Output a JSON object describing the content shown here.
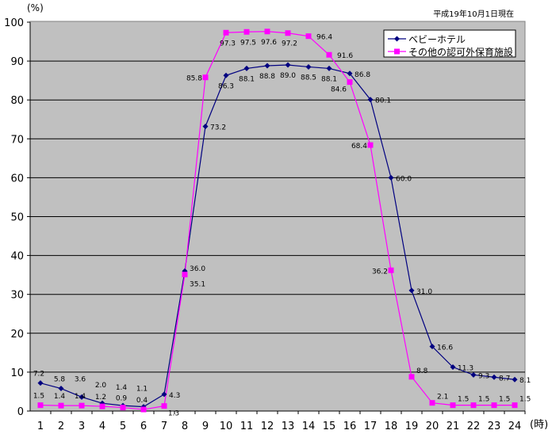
{
  "chart_data": {
    "type": "line",
    "title": "",
    "note": "平成19年10月1日現在",
    "ylabel": "(%)",
    "xlabel": "(時)",
    "ylim": [
      0,
      100
    ],
    "yticks": [
      0,
      10,
      20,
      30,
      40,
      50,
      60,
      70,
      80,
      90,
      100
    ],
    "categories": [
      "1",
      "2",
      "3",
      "4",
      "5",
      "6",
      "7",
      "8",
      "9",
      "10",
      "11",
      "12",
      "13",
      "14",
      "15",
      "16",
      "17",
      "18",
      "19",
      "20",
      "21",
      "22",
      "23",
      "24"
    ],
    "grid": "horizontal",
    "legend_position": "top-right",
    "series": [
      {
        "name": "ベビーホテル",
        "color": "#000080",
        "marker": "diamond",
        "values": [
          7.2,
          5.8,
          3.6,
          2.0,
          1.4,
          1.1,
          4.3,
          36.0,
          73.2,
          86.3,
          88.1,
          88.8,
          89.0,
          88.5,
          88.1,
          86.8,
          80.1,
          60.0,
          31.0,
          16.6,
          11.3,
          9.3,
          8.7,
          8.1
        ]
      },
      {
        "name": "その他の認可外保育施設",
        "color": "#FF00FF",
        "marker": "square",
        "values": [
          1.5,
          1.4,
          1.4,
          1.2,
          0.9,
          0.4,
          1.3,
          35.1,
          85.8,
          97.3,
          97.5,
          97.6,
          97.2,
          96.4,
          91.6,
          84.6,
          68.4,
          36.2,
          8.8,
          2.1,
          1.5,
          1.5,
          1.5,
          1.5
        ]
      }
    ]
  },
  "colors": {
    "plot_background": "#C0C0C0"
  }
}
